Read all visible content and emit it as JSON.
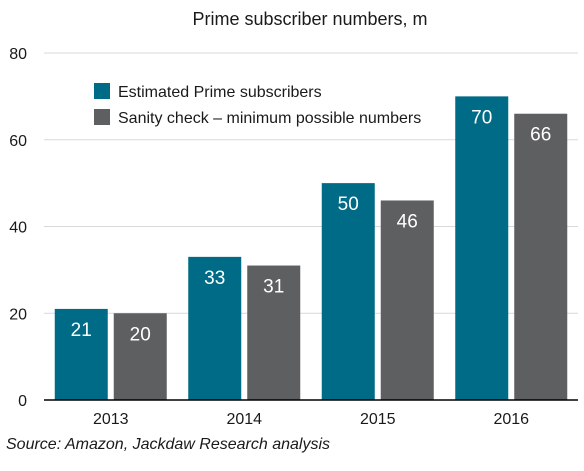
{
  "chart_data": {
    "type": "bar",
    "title": "Prime subscriber numbers, m",
    "xlabel": "",
    "ylabel": "",
    "categories": [
      "2013",
      "2014",
      "2015",
      "2016"
    ],
    "series": [
      {
        "name": "Estimated Prime subscribers",
        "values": [
          21,
          33,
          50,
          70
        ],
        "color": "#006b86"
      },
      {
        "name": "Sanity check – minimum possible numbers",
        "values": [
          20,
          31,
          46,
          66
        ],
        "color": "#5e5f61"
      }
    ],
    "ylim": [
      0,
      80
    ],
    "yticks": [
      0,
      20,
      40,
      60,
      80
    ],
    "grid": true,
    "legend_position": "top-left",
    "data_labels": true
  },
  "source": "Source: Amazon, Jackdaw Research analysis"
}
